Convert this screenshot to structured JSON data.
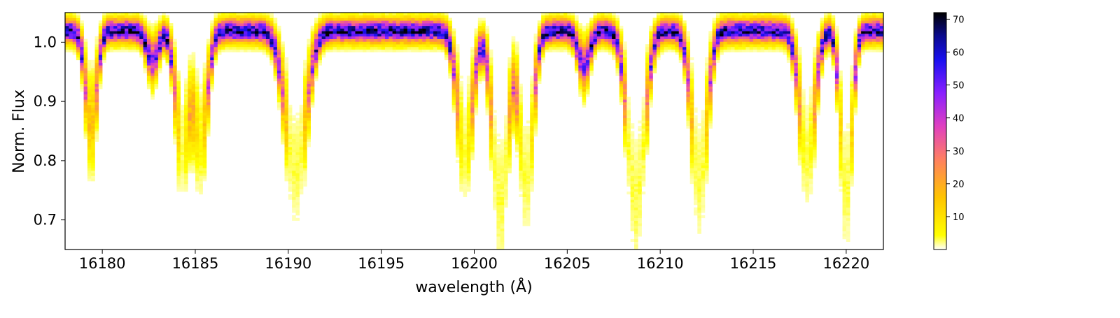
{
  "chart_data": {
    "type": "heatmap",
    "description_kind": "2D histogram of normalized flux versus wavelength",
    "title": "",
    "xlabel": "wavelength (Å)",
    "ylabel": "Norm. Flux",
    "xlim": [
      16178.0,
      16222.0
    ],
    "ylim": [
      0.65,
      1.05
    ],
    "xticks": [
      16180,
      16185,
      16190,
      16195,
      16200,
      16205,
      16210,
      16215,
      16220
    ],
    "yticks": [
      0.7,
      0.8,
      0.9,
      1.0
    ],
    "colormap": "gnuplot2_r",
    "colorbar": {
      "range": [
        0,
        72
      ],
      "ticks": [
        10,
        20,
        30,
        40,
        50,
        60,
        70
      ]
    },
    "continuum_level": 1.02,
    "absorption_lines": [
      {
        "center": 16179.4,
        "min_flux": 0.86,
        "width": 0.3
      },
      {
        "center": 16182.7,
        "min_flux": 0.97,
        "width": 0.3
      },
      {
        "center": 16184.3,
        "min_flux": 0.83,
        "width": 0.35
      },
      {
        "center": 16185.3,
        "min_flux": 0.84,
        "width": 0.35
      },
      {
        "center": 16190.4,
        "min_flux": 0.79,
        "width": 0.55
      },
      {
        "center": 16199.5,
        "min_flux": 0.82,
        "width": 0.4
      },
      {
        "center": 16201.4,
        "min_flux": 0.73,
        "width": 0.4
      },
      {
        "center": 16202.8,
        "min_flux": 0.77,
        "width": 0.35
      },
      {
        "center": 16205.9,
        "min_flux": 0.96,
        "width": 0.3
      },
      {
        "center": 16208.7,
        "min_flux": 0.74,
        "width": 0.45
      },
      {
        "center": 16212.1,
        "min_flux": 0.77,
        "width": 0.4
      },
      {
        "center": 16217.9,
        "min_flux": 0.81,
        "width": 0.4
      },
      {
        "center": 16220.0,
        "min_flux": 0.75,
        "width": 0.3
      }
    ]
  }
}
